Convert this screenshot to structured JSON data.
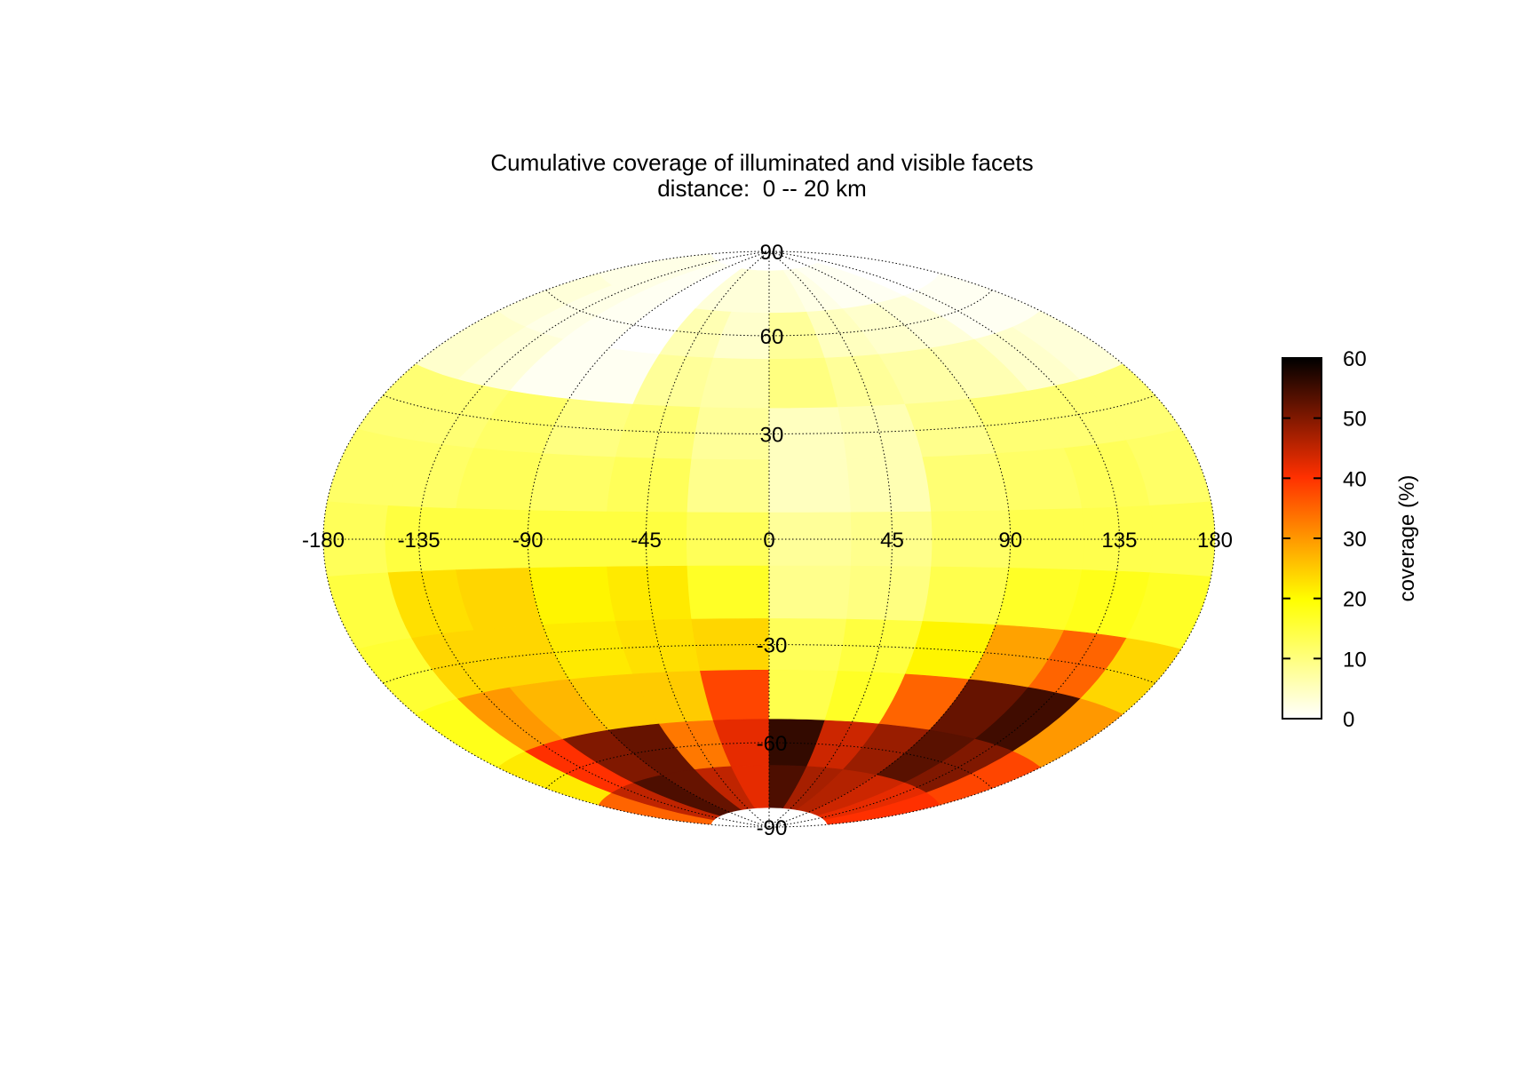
{
  "chart_data": {
    "type": "heatmap",
    "projection": "Aitoff-Hammer (equal-area ellipse)",
    "title": "Cumulative coverage of illuminated and visible facets",
    "subtitle": "distance:  0 -- 20 km",
    "x_ticks": [
      -180,
      -135,
      -90,
      -45,
      0,
      45,
      90,
      135,
      180
    ],
    "y_ticks": [
      90,
      60,
      30,
      -30,
      -60,
      -90
    ],
    "x_tick_labels": [
      "-180",
      "-135",
      "-90",
      "-45",
      "0",
      "45",
      "90",
      "135",
      "180"
    ],
    "y_tick_labels": [
      "90",
      "60",
      "30",
      "-30",
      "-60",
      "-90"
    ],
    "xlim": [
      -180,
      180
    ],
    "ylim": [
      -90,
      90
    ],
    "grid": true,
    "colorbar": {
      "label": "coverage (%)",
      "range": [
        0,
        60
      ],
      "ticks": [
        0,
        10,
        20,
        30,
        40,
        50,
        60
      ],
      "tick_labels": [
        "0",
        "10",
        "20",
        "30",
        "40",
        "50",
        "60"
      ],
      "colormap": [
        "#ffffff",
        "#ffff00",
        "#ff3000",
        "#000000"
      ],
      "placement": "right"
    },
    "latitude_bands": [
      75,
      60,
      45,
      30,
      15,
      0,
      -15,
      -30,
      -45,
      -60,
      -75
    ],
    "longitude_bands": [
      -165,
      -135,
      -105,
      -75,
      -45,
      -15,
      15,
      45,
      75,
      105,
      135,
      165
    ],
    "values": [
      [
        2,
        2,
        1,
        0,
        3,
        3,
        3,
        2,
        1,
        1,
        0,
        0
      ],
      [
        3,
        2,
        1,
        0,
        6,
        4,
        8,
        5,
        4,
        3,
        1,
        1
      ],
      [
        4,
        3,
        1,
        1,
        8,
        7,
        10,
        8,
        7,
        6,
        4,
        3
      ],
      [
        11,
        11,
        12,
        10,
        11,
        8,
        5,
        6,
        9,
        11,
        11,
        11
      ],
      [
        12,
        12,
        13,
        12,
        13,
        9,
        5,
        6,
        11,
        12,
        13,
        12
      ],
      [
        13,
        15,
        15,
        15,
        15,
        13,
        8,
        9,
        12,
        14,
        14,
        14
      ],
      [
        15,
        23,
        24,
        21,
        22,
        17,
        9,
        10,
        14,
        17,
        18,
        17
      ],
      [
        16,
        24,
        24,
        22,
        23,
        24,
        13,
        15,
        21,
        29,
        35,
        24
      ],
      [
        18,
        30,
        27,
        25,
        25,
        38,
        14,
        17,
        35,
        52,
        55,
        30
      ],
      [
        22,
        40,
        50,
        52,
        33,
        42,
        56,
        44,
        48,
        53,
        50,
        38
      ],
      [
        35,
        45,
        54,
        52,
        45,
        42,
        54,
        47,
        46,
        44,
        42,
        40
      ]
    ]
  },
  "colors": {
    "grid": "#000000",
    "background": "#ffffff"
  }
}
